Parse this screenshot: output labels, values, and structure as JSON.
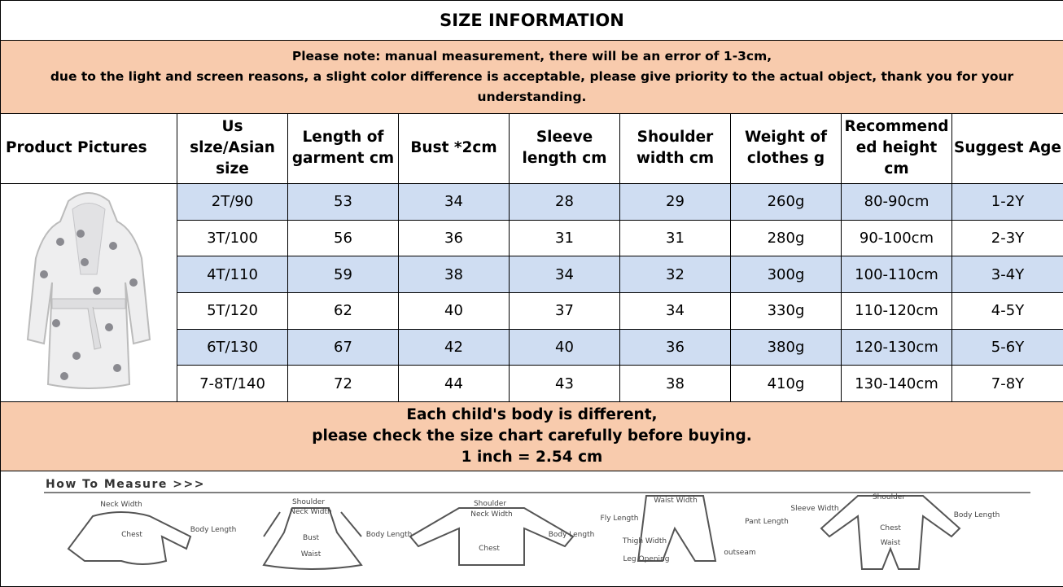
{
  "title": "SIZE INFORMATION",
  "note": [
    "Please note: manual measurement, there will be an error of 1-3cm,",
    "due to the light and screen reasons, a slight color difference is acceptable, please give priority to the actual object, thank you for your understanding."
  ],
  "table": {
    "header": [
      "Product Pictures",
      "Us slze/Asian size",
      "Length of garment cm",
      "Bust *2cm",
      "Sleeve length cm",
      "Shoulder width cm",
      "Weight of clothes g",
      "Recommended height cm",
      "Suggest Age"
    ],
    "rows": [
      [
        "2T/90",
        "53",
        "34",
        "28",
        "29",
        "260g",
        "80-90cm",
        "1-2Y"
      ],
      [
        "3T/100",
        "56",
        "36",
        "31",
        "31",
        "280g",
        "90-100cm",
        "2-3Y"
      ],
      [
        "4T/110",
        "59",
        "38",
        "34",
        "32",
        "300g",
        "100-110cm",
        "3-4Y"
      ],
      [
        "5T/120",
        "62",
        "40",
        "37",
        "34",
        "330g",
        "110-120cm",
        "4-5Y"
      ],
      [
        "6T/130",
        "67",
        "42",
        "40",
        "36",
        "380g",
        "120-130cm",
        "5-6Y"
      ],
      [
        "7-8T/140",
        "72",
        "44",
        "43",
        "38",
        "410g",
        "130-140cm",
        "7-8Y"
      ]
    ]
  },
  "footer": [
    "Each child's body is different,",
    "please check the size chart carefully before buying.",
    "1 inch = 2.54 cm"
  ],
  "measure": {
    "title": "How To Measure >>>",
    "diagrams": [
      [
        "Neck Width",
        "Chest",
        "Body Length"
      ],
      [
        "Shoulder",
        "Neck Width",
        "Bust",
        "Body Length",
        "Waist"
      ],
      [
        "Shoulder",
        "Neck Width",
        "Chest",
        "Body Length"
      ],
      [
        "Waist Width",
        "Fly Length",
        "Thigh Width",
        "Leg Opening",
        "Pant Length",
        "outseam"
      ],
      [
        "Shoulder",
        "Sleeve Width",
        "Chest",
        "Waist",
        "Body Length"
      ]
    ]
  }
}
